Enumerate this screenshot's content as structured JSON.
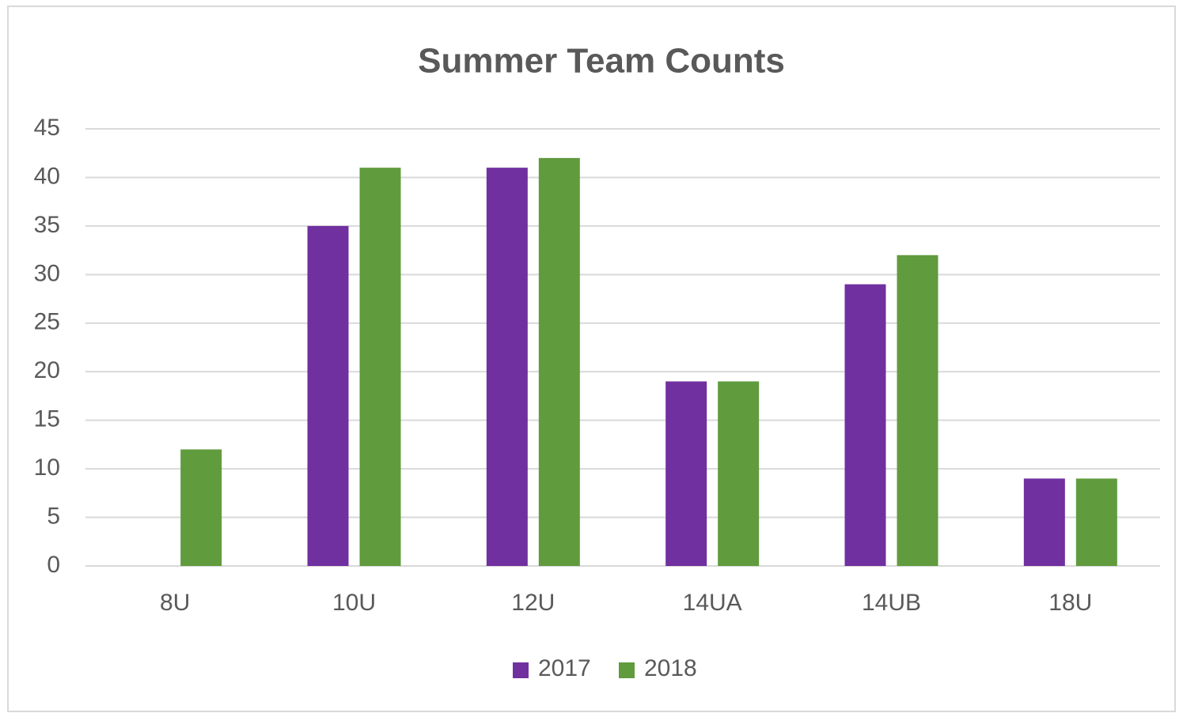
{
  "chart_data": {
    "type": "bar",
    "title": "Summer Team Counts",
    "categories": [
      "8U",
      "10U",
      "12U",
      "14UA",
      "14UB",
      "18U"
    ],
    "series": [
      {
        "name": "2017",
        "color": "#7030a0",
        "values": [
          0,
          35,
          41,
          19,
          29,
          9
        ]
      },
      {
        "name": "2018",
        "color": "#609b3e",
        "values": [
          12,
          41,
          42,
          19,
          32,
          9
        ]
      }
    ],
    "ylim": [
      0,
      45
    ],
    "yticks": [
      0,
      5,
      10,
      15,
      20,
      25,
      30,
      35,
      40,
      45
    ],
    "grid": true,
    "legend": "bottom"
  }
}
